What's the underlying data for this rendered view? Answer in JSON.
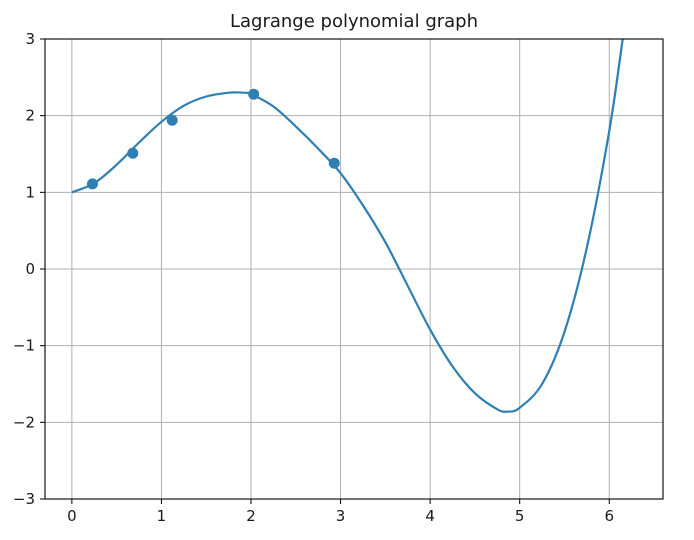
{
  "chart_data": {
    "type": "line",
    "title": "Lagrange polynomial graph",
    "xlabel": "",
    "ylabel": "",
    "xlim": [
      -0.3,
      6.6
    ],
    "ylim": [
      -3,
      3
    ],
    "x_ticks": [
      0,
      1,
      2,
      3,
      4,
      5,
      6
    ],
    "y_ticks": [
      -3,
      -2,
      -1,
      0,
      1,
      2,
      3
    ],
    "x_tick_labels": [
      "0",
      "1",
      "2",
      "3",
      "4",
      "5",
      "6"
    ],
    "y_tick_labels": [
      "−3",
      "−2",
      "−1",
      "0",
      "1",
      "2",
      "3"
    ],
    "grid": true,
    "legend": "none",
    "colors": {
      "series": "#2e7fb4",
      "grid": "#b0b0b0",
      "axes": "#000000"
    },
    "series": [
      {
        "kind": "line",
        "x": [
          0,
          0.25,
          0.5,
          0.75,
          1.0,
          1.25,
          1.5,
          1.75,
          1.9,
          2.0,
          2.25,
          2.5,
          2.75,
          3.0,
          3.25,
          3.5,
          3.75,
          4.0,
          4.25,
          4.5,
          4.75,
          4.87,
          5.0,
          5.25,
          5.5,
          5.75,
          6.0,
          6.15
        ],
        "y": [
          1.0,
          1.12,
          1.36,
          1.65,
          1.92,
          2.13,
          2.25,
          2.3,
          2.3,
          2.28,
          2.12,
          1.86,
          1.57,
          1.25,
          0.83,
          0.35,
          -0.22,
          -0.79,
          -1.27,
          -1.62,
          -1.83,
          -1.86,
          -1.81,
          -1.5,
          -0.82,
          0.28,
          1.8,
          3.0
        ]
      },
      {
        "kind": "scatter",
        "x": [
          0.23,
          0.68,
          1.12,
          2.03,
          2.93
        ],
        "y": [
          1.11,
          1.51,
          1.94,
          2.28,
          1.38
        ]
      }
    ]
  }
}
